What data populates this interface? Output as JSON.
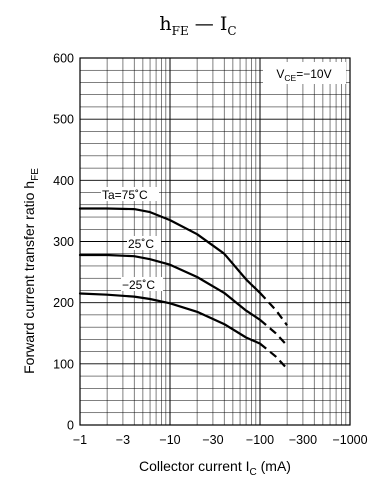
{
  "chart_data": {
    "type": "line",
    "title": {
      "main": "h",
      "main_sub": "FE",
      "dash": " — ",
      "second": "I",
      "second_sub": "C"
    },
    "ylabel": {
      "main": "Forward current transfer ratio",
      "symbol": "h",
      "symbol_sub": "FE"
    },
    "xlabel": {
      "main": "Collector current",
      "symbol": "I",
      "symbol_sub": "C",
      "unit": "(mA)"
    },
    "condition": {
      "prefix": "V",
      "sub": "CE",
      "value": "=−10V"
    },
    "x_scale": "log",
    "x_magnitude_range": [
      1,
      1000
    ],
    "x_ticks": [
      {
        "value": 1,
        "label": "−1"
      },
      {
        "value": 3,
        "label": "−3"
      },
      {
        "value": 10,
        "label": "−10"
      },
      {
        "value": 30,
        "label": "−30"
      },
      {
        "value": 100,
        "label": "−100"
      },
      {
        "value": 300,
        "label": "−300"
      },
      {
        "value": 1000,
        "label": "−1000"
      }
    ],
    "ylim": [
      0,
      600
    ],
    "y_ticks": [
      0,
      100,
      200,
      300,
      400,
      500,
      600
    ],
    "y_minor_step": 20,
    "grid": true,
    "series": [
      {
        "name": "Ta=75˚C",
        "solid": [
          [
            1,
            354
          ],
          [
            2,
            354
          ],
          [
            4,
            353
          ],
          [
            6,
            348
          ],
          [
            10,
            335
          ],
          [
            20,
            312
          ],
          [
            40,
            280
          ],
          [
            70,
            238
          ],
          [
            100,
            216
          ]
        ],
        "dashed": [
          [
            100,
            216
          ],
          [
            150,
            188
          ],
          [
            200,
            163
          ]
        ]
      },
      {
        "name": "25˚C",
        "solid": [
          [
            1,
            278
          ],
          [
            2,
            278
          ],
          [
            4,
            276
          ],
          [
            6,
            271
          ],
          [
            10,
            262
          ],
          [
            20,
            242
          ],
          [
            40,
            216
          ],
          [
            70,
            187
          ],
          [
            100,
            172
          ]
        ],
        "dashed": [
          [
            100,
            172
          ],
          [
            150,
            150
          ],
          [
            200,
            130
          ]
        ]
      },
      {
        "name": "−25˚C",
        "solid": [
          [
            1,
            215
          ],
          [
            2,
            213
          ],
          [
            4,
            210
          ],
          [
            6,
            206
          ],
          [
            10,
            199
          ],
          [
            20,
            185
          ],
          [
            40,
            165
          ],
          [
            70,
            143
          ],
          [
            100,
            133
          ]
        ],
        "dashed": [
          [
            100,
            133
          ],
          [
            150,
            112
          ],
          [
            200,
            92
          ]
        ]
      }
    ]
  }
}
